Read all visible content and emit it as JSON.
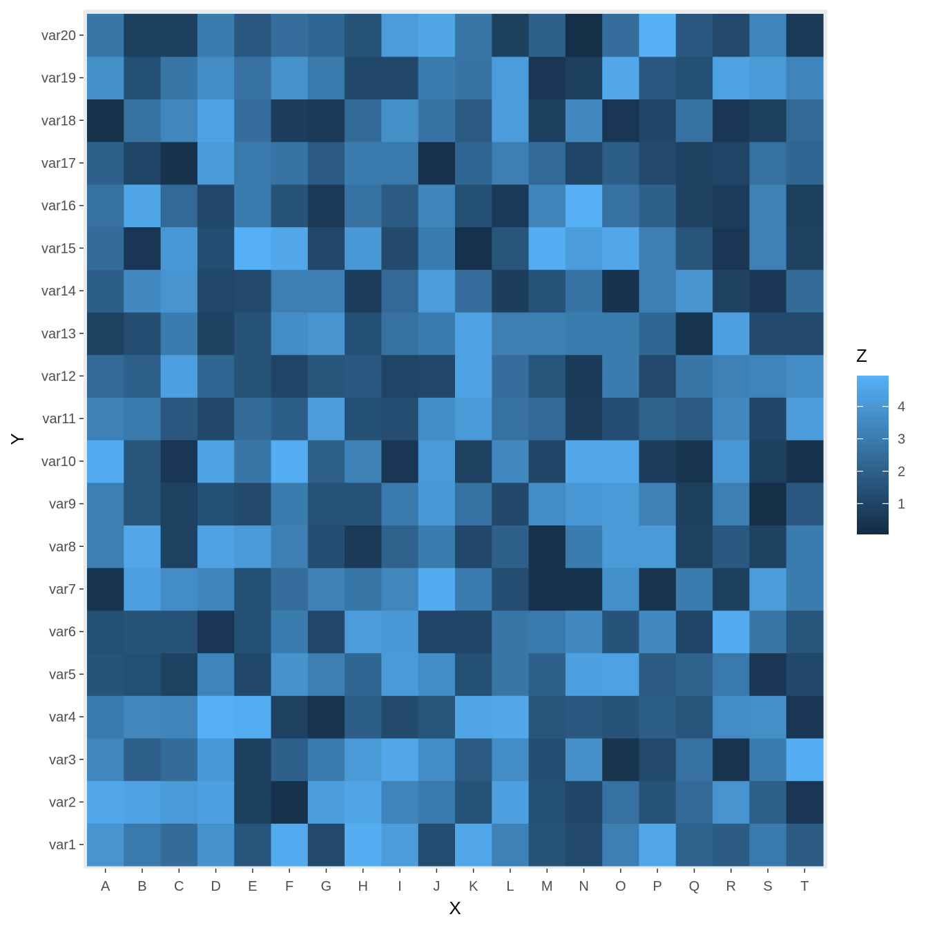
{
  "chart_data": {
    "type": "heatmap",
    "xlabel": "X",
    "ylabel": "Y",
    "x_categories": [
      "A",
      "B",
      "C",
      "D",
      "E",
      "F",
      "G",
      "H",
      "I",
      "J",
      "K",
      "L",
      "M",
      "N",
      "O",
      "P",
      "Q",
      "R",
      "S",
      "T"
    ],
    "y_categories": [
      "var1",
      "var2",
      "var3",
      "var4",
      "var5",
      "var6",
      "var7",
      "var8",
      "var9",
      "var10",
      "var11",
      "var12",
      "var13",
      "var14",
      "var15",
      "var16",
      "var17",
      "var18",
      "var19",
      "var20"
    ],
    "values": [
      [
        3.9,
        2.9,
        2.4,
        3.8,
        1.6,
        4.7,
        1.2,
        4.8,
        4.2,
        1.3,
        4.6,
        3.2,
        1.5,
        1.2,
        3.1,
        4.6,
        2.1,
        1.8,
        2.9,
        1.8
      ],
      [
        4.6,
        4.4,
        4.1,
        4.3,
        0.8,
        0.3,
        4.2,
        4.5,
        3.3,
        2.9,
        1.5,
        4.3,
        1.4,
        1.0,
        2.6,
        1.5,
        2.3,
        3.9,
        2.0,
        0.5
      ],
      [
        3.4,
        2.0,
        2.4,
        4.0,
        0.8,
        2.0,
        3.0,
        4.1,
        4.6,
        3.6,
        1.8,
        3.6,
        1.3,
        3.7,
        0.4,
        1.2,
        2.6,
        0.4,
        3.0,
        4.8
      ],
      [
        2.9,
        3.4,
        3.3,
        4.9,
        4.8,
        0.9,
        0.4,
        1.9,
        1.2,
        1.6,
        4.5,
        4.6,
        1.6,
        1.7,
        1.5,
        1.9,
        1.6,
        3.6,
        3.7,
        0.5
      ],
      [
        1.5,
        1.4,
        0.9,
        3.3,
        1.1,
        3.8,
        3.1,
        2.2,
        4.1,
        3.6,
        1.4,
        2.8,
        2.0,
        4.3,
        4.4,
        1.8,
        2.1,
        2.9,
        0.5,
        1.1
      ],
      [
        1.4,
        1.5,
        1.5,
        0.5,
        1.4,
        3.0,
        1.1,
        4.2,
        4.0,
        1.0,
        1.0,
        2.8,
        2.9,
        3.5,
        1.5,
        3.5,
        1.0,
        4.7,
        2.8,
        1.6
      ],
      [
        0.4,
        4.3,
        3.6,
        3.3,
        1.4,
        2.5,
        3.2,
        2.8,
        3.4,
        4.7,
        3.0,
        1.3,
        0.3,
        0.3,
        3.7,
        0.4,
        3.0,
        0.8,
        4.2,
        3.0
      ],
      [
        3.1,
        4.6,
        0.9,
        4.4,
        4.1,
        3.1,
        1.3,
        0.6,
        2.1,
        3.0,
        1.1,
        2.0,
        0.3,
        3.0,
        4.1,
        4.1,
        0.9,
        1.7,
        0.9,
        3.0
      ],
      [
        3.1,
        1.6,
        0.9,
        1.4,
        1.2,
        3.0,
        1.5,
        1.5,
        2.9,
        4.0,
        2.6,
        1.1,
        3.6,
        4.0,
        4.1,
        3.2,
        0.8,
        3.1,
        0.2,
        1.7
      ],
      [
        4.7,
        1.6,
        0.5,
        4.4,
        2.8,
        4.8,
        2.0,
        3.2,
        0.5,
        4.1,
        0.9,
        3.5,
        1.0,
        4.6,
        4.6,
        0.7,
        0.4,
        4.0,
        0.8,
        0.3
      ],
      [
        3.2,
        2.9,
        1.7,
        1.1,
        2.4,
        1.9,
        4.2,
        1.4,
        1.3,
        3.6,
        4.1,
        2.6,
        2.3,
        0.7,
        1.3,
        2.1,
        1.8,
        3.4,
        1.0,
        4.2
      ],
      [
        2.3,
        2.0,
        4.3,
        2.2,
        1.5,
        1.0,
        1.6,
        1.7,
        1.0,
        1.1,
        4.4,
        2.5,
        1.6,
        0.6,
        3.0,
        1.2,
        2.8,
        3.2,
        3.3,
        3.6
      ],
      [
        0.9,
        1.3,
        3.0,
        0.9,
        1.5,
        3.6,
        3.9,
        1.4,
        2.6,
        3.0,
        4.4,
        3.1,
        3.1,
        3.0,
        3.0,
        2.2,
        0.4,
        4.3,
        1.2,
        1.2
      ],
      [
        1.9,
        3.5,
        3.9,
        1.1,
        1.2,
        3.1,
        3.1,
        0.7,
        2.3,
        4.2,
        2.5,
        0.7,
        1.5,
        2.7,
        0.3,
        3.1,
        3.9,
        0.9,
        0.5,
        2.4
      ],
      [
        2.4,
        0.5,
        4.0,
        1.3,
        4.9,
        4.6,
        1.1,
        4.0,
        1.2,
        3.0,
        0.3,
        1.6,
        4.8,
        4.2,
        4.6,
        3.1,
        1.6,
        0.5,
        3.2,
        0.9
      ],
      [
        2.6,
        4.5,
        2.3,
        1.1,
        3.0,
        1.5,
        0.6,
        2.6,
        1.8,
        3.3,
        1.4,
        0.6,
        3.3,
        4.9,
        2.6,
        2.0,
        0.9,
        0.7,
        3.2,
        0.8
      ],
      [
        2.0,
        1.0,
        0.3,
        4.1,
        2.9,
        2.7,
        1.8,
        3.0,
        2.9,
        0.3,
        2.2,
        3.1,
        2.3,
        1.0,
        1.9,
        1.2,
        0.9,
        1.0,
        2.6,
        2.2
      ],
      [
        0.3,
        2.6,
        3.4,
        4.4,
        2.5,
        0.7,
        0.6,
        2.4,
        3.7,
        2.7,
        1.8,
        4.2,
        0.8,
        3.5,
        0.5,
        1.0,
        2.6,
        0.5,
        0.8,
        2.3
      ],
      [
        3.7,
        1.4,
        2.8,
        3.6,
        2.6,
        3.8,
        2.9,
        1.1,
        1.1,
        3.0,
        2.7,
        4.2,
        0.5,
        0.8,
        4.6,
        1.7,
        1.4,
        4.4,
        4.1,
        3.3
      ],
      [
        2.8,
        0.8,
        0.8,
        3.0,
        1.7,
        2.5,
        2.2,
        1.5,
        4.2,
        4.5,
        2.8,
        0.8,
        2.0,
        0.2,
        2.5,
        4.9,
        1.7,
        1.2,
        3.3,
        0.6
      ]
    ],
    "color_scale": {
      "low": "#132B43",
      "high": "#56B1F7",
      "min": 0.05,
      "max": 4.95
    },
    "legend": {
      "title": "Z",
      "ticks": [
        1,
        2,
        3,
        4
      ],
      "placement": "right"
    },
    "grid": true,
    "panel_background": "#EBEBEB"
  }
}
